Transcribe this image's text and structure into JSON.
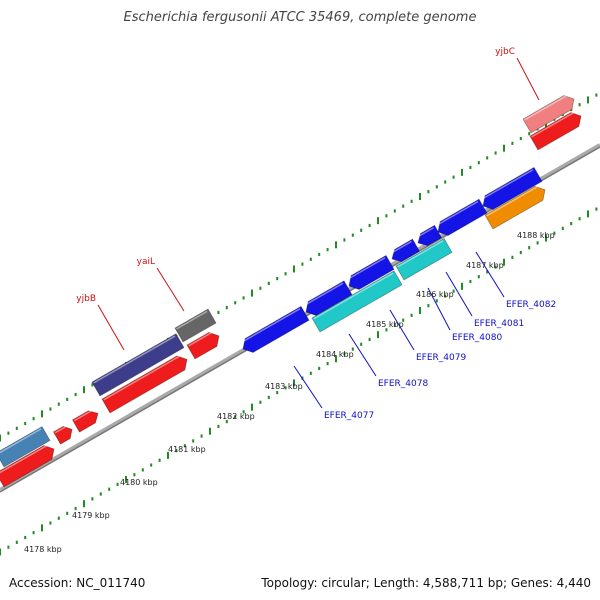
{
  "title": "Escherichia fergusonii ATCC 35469, complete genome",
  "accession": "Accession: NC_011740",
  "topology": "Topology: circular; Length: 4,588,711 bp; Genes: 4,440",
  "kbp_labels": [
    "4178 kbp",
    "4179 kbp",
    "4180 kbp",
    "4181 kbp",
    "4182 kbp",
    "4183 kbp",
    "4184 kbp",
    "4185 kbp",
    "4186 kbp",
    "4187 kbp",
    "4188 kbp"
  ],
  "blue_gene_labels": [
    "EFER_4077",
    "EFER_4078",
    "EFER_4079",
    "EFER_4080",
    "EFER_4081",
    "EFER_4082"
  ],
  "red_gene_labels": [
    "yjbB",
    "yaiL",
    "yjbC"
  ],
  "colors": {
    "backbone": "#888888",
    "tick": "#228b22",
    "gene_forward": "#1414e6",
    "gene_reverse": "#ee1c1c",
    "gene_cyan": "#20c8c8",
    "gene_purple": "#3d3d8c",
    "gene_steelblue": "#4682b4",
    "gene_gray": "#666666",
    "gene_orange": "#f08c00",
    "gene_pink": "#f08080"
  }
}
